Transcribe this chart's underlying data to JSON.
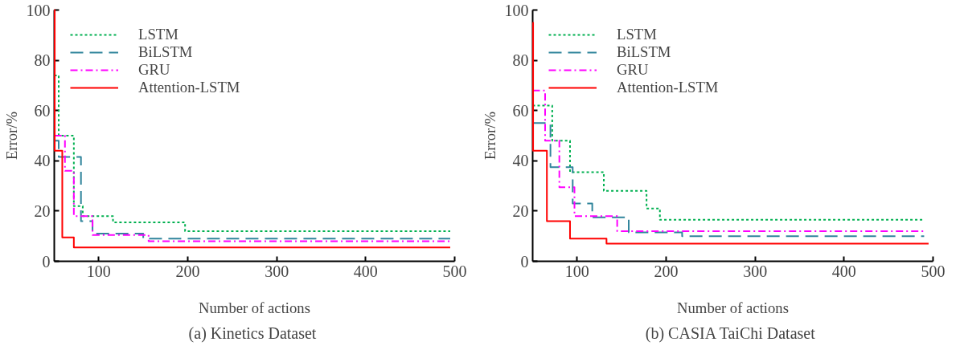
{
  "chart_data": [
    {
      "type": "step",
      "title": "(a)  Kinetics Dataset",
      "xlabel": "Number of actions",
      "ylabel": "Error/%",
      "xlim": [
        50,
        500
      ],
      "ylim": [
        0,
        100
      ],
      "xticks": [
        100,
        200,
        300,
        400,
        500
      ],
      "yticks": [
        0,
        20,
        40,
        60,
        80,
        100
      ],
      "grid": false,
      "legend": "top left",
      "series": [
        {
          "name": "LSTM",
          "color": "#00b050",
          "line_style": "dotted",
          "x": [
            50,
            55,
            72,
            82,
            116,
            197,
            495
          ],
          "values": [
            74,
            50,
            22,
            18,
            15.5,
            12,
            12
          ]
        },
        {
          "name": "BiLSTM",
          "color": "#31859c",
          "line_style": "dashed",
          "x": [
            50,
            55,
            80,
            93,
            150,
            495
          ],
          "values": [
            48,
            41.5,
            16,
            11,
            9,
            9
          ]
        },
        {
          "name": "GRU",
          "color": "#ff00ff",
          "line_style": "dashdot",
          "x": [
            50,
            62,
            72,
            93,
            156,
            495
          ],
          "values": [
            50,
            36,
            18,
            10.5,
            8,
            8
          ]
        },
        {
          "name": "Attention-LSTM",
          "color": "#ff0000",
          "line_style": "solid",
          "x": [
            50,
            50.5,
            59,
            72,
            495
          ],
          "values": [
            100,
            44,
            9.5,
            5.5,
            5.5
          ]
        }
      ]
    },
    {
      "type": "step",
      "title": "(b)  CASIA TaiChi Dataset",
      "xlabel": "Number of actions",
      "ylabel": "Error/%",
      "xlim": [
        50,
        500
      ],
      "ylim": [
        0,
        100
      ],
      "xticks": [
        100,
        200,
        300,
        400,
        500
      ],
      "yticks": [
        0,
        20,
        40,
        60,
        80,
        100
      ],
      "grid": false,
      "legend": "top left",
      "series": [
        {
          "name": "LSTM",
          "color": "#00b050",
          "line_style": "dotted",
          "x": [
            50,
            72,
            92,
            130,
            178,
            193,
            490
          ],
          "values": [
            62,
            48,
            35.5,
            28,
            21,
            16.5,
            16.5
          ]
        },
        {
          "name": "BiLSTM",
          "color": "#31859c",
          "line_style": "dashed",
          "x": [
            50,
            70,
            95,
            117,
            158,
            218,
            490
          ],
          "values": [
            55,
            37.5,
            23,
            17.5,
            11.5,
            10,
            10
          ]
        },
        {
          "name": "GRU",
          "color": "#ff00ff",
          "line_style": "dashdot",
          "x": [
            50,
            64,
            80,
            97,
            145,
            490
          ],
          "values": [
            68,
            48,
            29.5,
            18,
            12,
            12
          ]
        },
        {
          "name": "Attention-LSTM",
          "color": "#ff0000",
          "line_style": "solid",
          "x": [
            50,
            50.5,
            66,
            92,
            133,
            495
          ],
          "values": [
            95,
            44,
            16,
            9,
            7,
            7
          ]
        }
      ]
    }
  ]
}
